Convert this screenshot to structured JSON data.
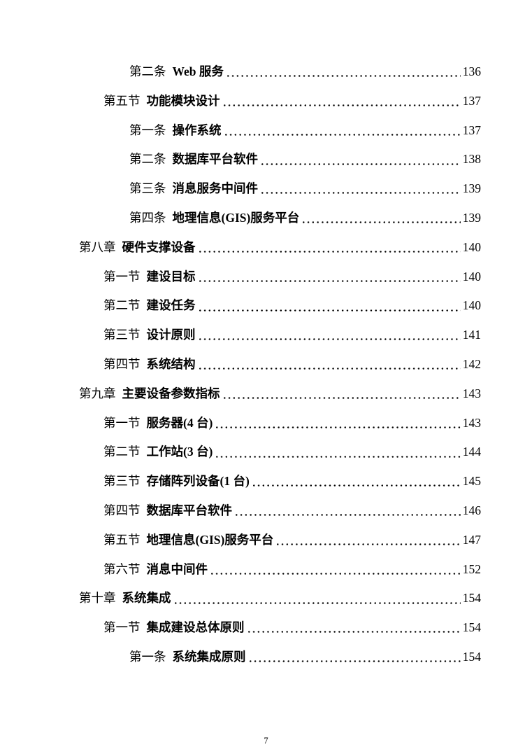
{
  "document": {
    "colors": {
      "text": "#000000",
      "background": "#ffffff"
    },
    "toc": {
      "entries": [
        {
          "level": "item",
          "label": "第二条",
          "title": "Web 服务",
          "page": "136"
        },
        {
          "level": "section",
          "label": "第五节",
          "title": "功能模块设计",
          "page": "137"
        },
        {
          "level": "item",
          "label": "第一条",
          "title": "操作系统",
          "page": "137"
        },
        {
          "level": "item",
          "label": "第二条",
          "title": "数据库平台软件",
          "page": "138"
        },
        {
          "level": "item",
          "label": "第三条",
          "title": "消息服务中间件",
          "page": "139"
        },
        {
          "level": "item",
          "label": "第四条",
          "title": "地理信息(GIS)服务平台",
          "page": "139"
        },
        {
          "level": "chapter",
          "label": "第八章",
          "title": "硬件支撑设备",
          "page": "140"
        },
        {
          "level": "section",
          "label": "第一节",
          "title": "建设目标",
          "page": "140"
        },
        {
          "level": "section",
          "label": "第二节",
          "title": "建设任务",
          "page": "140"
        },
        {
          "level": "section",
          "label": "第三节",
          "title": "设计原则",
          "page": "141"
        },
        {
          "level": "section",
          "label": "第四节",
          "title": "系统结构",
          "page": "142"
        },
        {
          "level": "chapter",
          "label": "第九章",
          "title": "主要设备参数指标",
          "page": "143"
        },
        {
          "level": "section",
          "label": "第一节",
          "title": "服务器(4 台)",
          "page": "143"
        },
        {
          "level": "section",
          "label": "第二节",
          "title": "工作站(3 台)",
          "page": "144"
        },
        {
          "level": "section",
          "label": "第三节",
          "title": "存储阵列设备(1 台)",
          "page": "145"
        },
        {
          "level": "section",
          "label": "第四节",
          "title": "数据库平台软件",
          "page": "146"
        },
        {
          "level": "section",
          "label": "第五节",
          "title": "地理信息(GIS)服务平台",
          "page": "147"
        },
        {
          "level": "section",
          "label": "第六节",
          "title": "消息中间件",
          "page": "152"
        },
        {
          "level": "chapter",
          "label": "第十章",
          "title": "系统集成",
          "page": "154"
        },
        {
          "level": "section",
          "label": "第一节",
          "title": "集成建设总体原则",
          "page": "154"
        },
        {
          "level": "item",
          "label": "第一条",
          "title": "系统集成原则",
          "page": "154"
        }
      ]
    },
    "footer": {
      "page_number": "7"
    }
  }
}
